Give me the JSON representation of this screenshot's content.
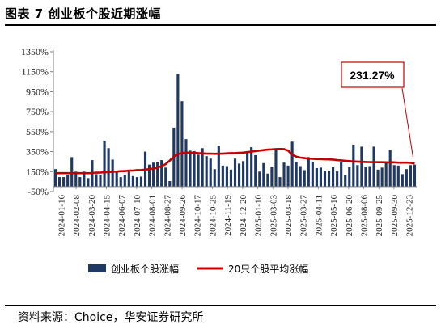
{
  "header": {
    "title": "图表 7 创业板个股近期涨幅"
  },
  "footer": {
    "source": "资料来源：Choice，华安证券研究所"
  },
  "chart_data": {
    "type": "bar",
    "title": "图表 7 创业板个股近期涨幅",
    "xlabel": "",
    "ylabel": "",
    "ylim": [
      -50,
      1350
    ],
    "yticks": [
      -50,
      150,
      350,
      550,
      750,
      950,
      1150,
      1350
    ],
    "ytick_labels": [
      "-50%",
      "150%",
      "350%",
      "550%",
      "750%",
      "950%",
      "1150%",
      "1350%"
    ],
    "grid": false,
    "legend_position": "bottom",
    "xtick_labels": [
      "2024-01-16",
      "2024-02-08",
      "2024-03-20",
      "2024-04-15",
      "2024-06-07",
      "2024-07-10",
      "2024-08-01",
      "2024-08-27",
      "2024-09-26",
      "2024-10-17",
      "2024-10-25",
      "2024-11-19",
      "2024-12-20",
      "2025-01-10",
      "2025-03-03",
      "2025-03-18",
      "2025-03-27",
      "2025-04-11",
      "2025-05-16",
      "2025-06-20",
      "2025-08-06",
      "2025-09-25",
      "2025-09-30",
      "2025-12-23"
    ],
    "annotation": {
      "text": "231.27%",
      "value": 231.27
    },
    "series": [
      {
        "name": "创业板个股涨幅",
        "type": "bar",
        "color": "#1f3864",
        "values": [
          175,
          95,
          95,
          120,
          295,
          150,
          95,
          150,
          85,
          265,
          125,
          115,
          460,
          385,
          270,
          160,
          95,
          120,
          150,
          105,
          95,
          100,
          350,
          220,
          240,
          245,
          265,
          190,
          55,
          590,
          1125,
          855,
          475,
          360,
          355,
          320,
          385,
          305,
          280,
          175,
          410,
          210,
          205,
          170,
          280,
          230,
          255,
          350,
          395,
          315,
          150,
          235,
          130,
          200,
          380,
          95,
          240,
          210,
          450,
          245,
          205,
          165,
          295,
          250,
          185,
          190,
          155,
          160,
          195,
          155,
          245,
          120,
          195,
          420,
          215,
          400,
          195,
          205,
          400,
          170,
          190,
          240,
          365,
          215,
          210,
          125,
          175,
          215,
          220
        ]
      },
      {
        "name": "20只个股平均涨幅",
        "type": "line",
        "color": "#c00000",
        "values": [
          135,
          135,
          135,
          135,
          135,
          135,
          135,
          135,
          135,
          135,
          140,
          140,
          145,
          145,
          150,
          150,
          155,
          155,
          160,
          160,
          165,
          165,
          170,
          175,
          180,
          190,
          205,
          225,
          260,
          300,
          325,
          335,
          340,
          340,
          338,
          335,
          333,
          330,
          330,
          328,
          330,
          330,
          333,
          335,
          335,
          338,
          340,
          345,
          350,
          355,
          360,
          365,
          370,
          372,
          375,
          376,
          375,
          360,
          320,
          300,
          290,
          285,
          280,
          278,
          276,
          275,
          273,
          272,
          270,
          265,
          262,
          258,
          255,
          252,
          250,
          248,
          246,
          245,
          245,
          244,
          244,
          243,
          242,
          243,
          240,
          240,
          240,
          238,
          231.27
        ]
      }
    ]
  }
}
